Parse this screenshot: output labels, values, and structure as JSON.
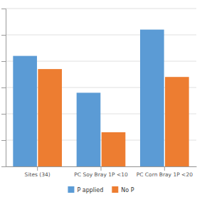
{
  "chart_data": {
    "type": "bar",
    "categories": [
      "Sites (34)",
      "PC Soy Bray 1P <10",
      "PC Corn Bray 1P <20"
    ],
    "series": [
      {
        "name": "P applied",
        "color": "#5B9BD5",
        "values": [
          42,
          28,
          52
        ]
      },
      {
        "name": "No P",
        "color": "#ED7D31",
        "values": [
          37,
          13,
          34
        ]
      }
    ],
    "ylim": [
      0,
      60
    ],
    "yticks": [
      0,
      10,
      20,
      30,
      40,
      50,
      60
    ],
    "grid": true,
    "legend": "bottom",
    "tick_labels": "x"
  }
}
